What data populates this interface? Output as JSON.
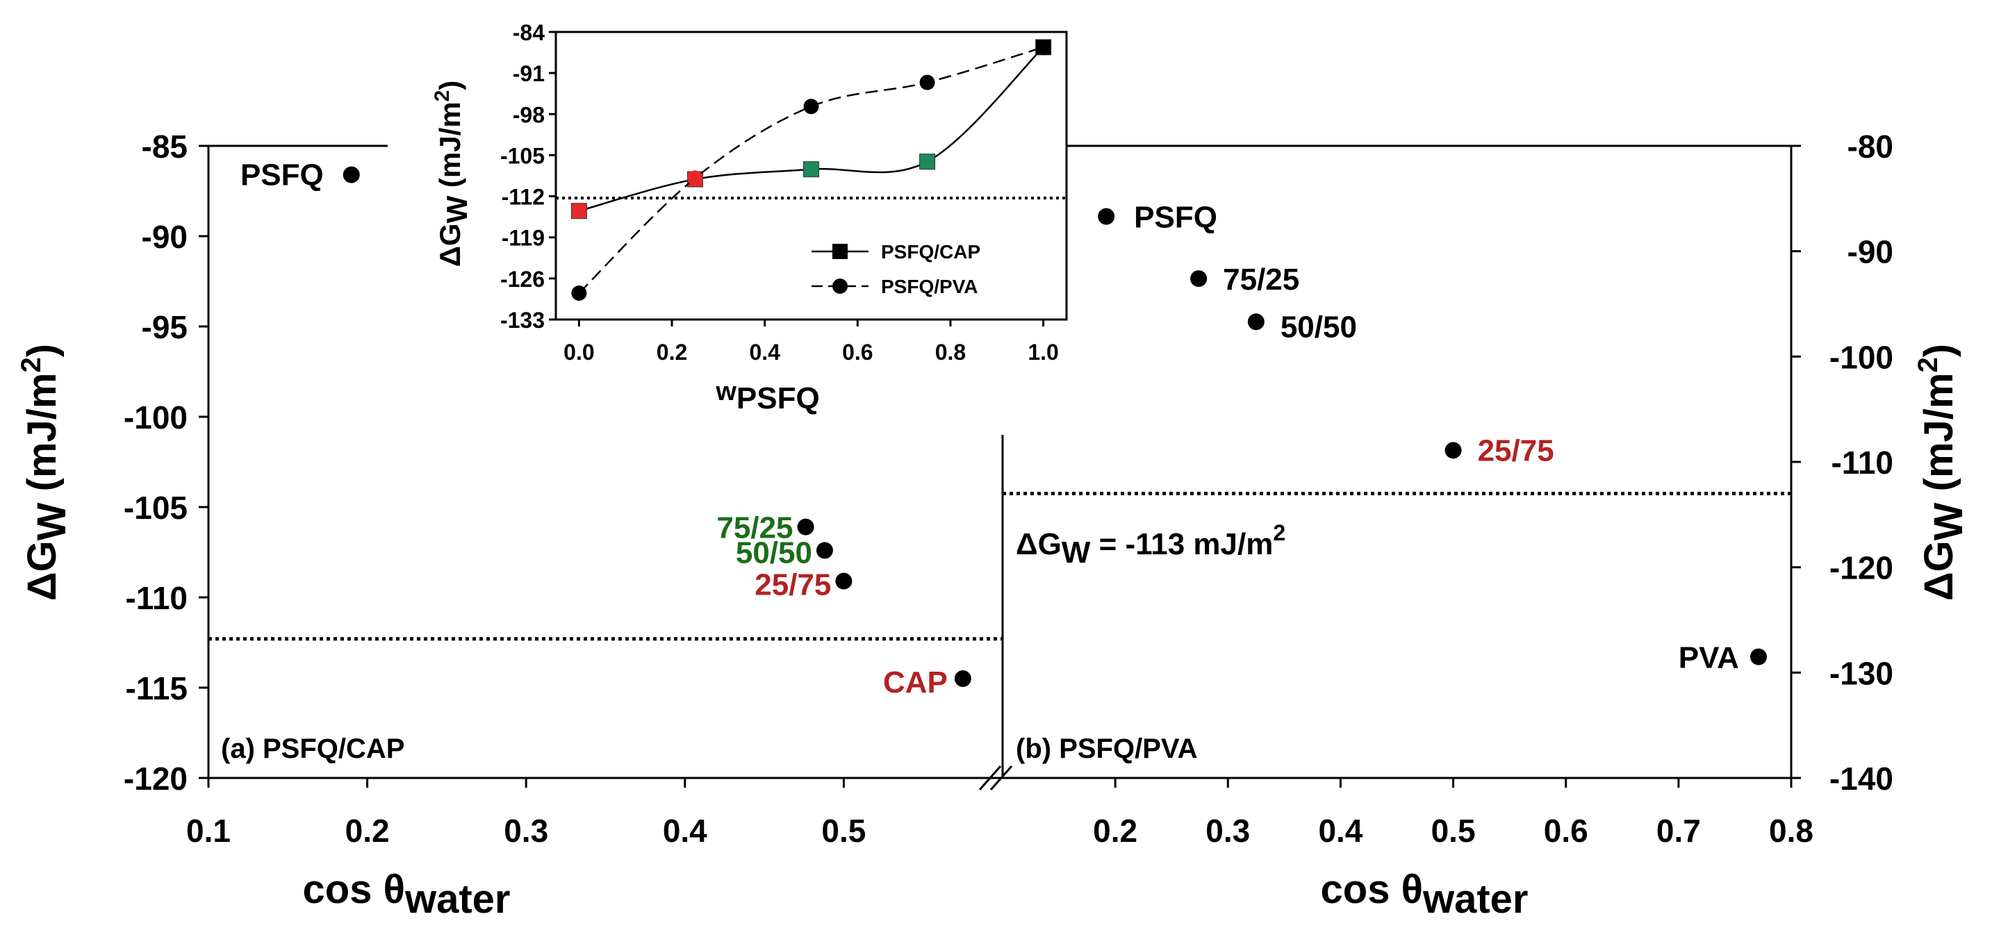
{
  "chart_data": [
    {
      "id": "panel_a",
      "type": "scatter",
      "panel_label": "(a) PSFQ/CAP",
      "xlabel_main": "cos θ",
      "xlabel_sub": "water",
      "ylabel_main": "ΔG",
      "ylabel_sub": "W",
      "ylabel_units": " (mJ/m",
      "ylabel_sup": "2",
      "ylabel_close": ")",
      "xlim": [
        0.1,
        0.6
      ],
      "ylim": [
        -120,
        -85
      ],
      "x_ticks": [
        0.1,
        0.2,
        0.3,
        0.4,
        0.5
      ],
      "x_tick_labels": [
        "0.1",
        "0.2",
        "0.3",
        "0.4",
        "0.5"
      ],
      "y_ticks": [
        -85,
        -90,
        -95,
        -100,
        -105,
        -110,
        -115,
        -120
      ],
      "y_tick_labels": [
        "-85",
        "-90",
        "-95",
        "-100",
        "-105",
        "-110",
        "-115",
        "-120"
      ],
      "reference_y": -112.3,
      "points": [
        {
          "x": 0.19,
          "y": -86.6,
          "label": "PSFQ",
          "color": "#000000"
        },
        {
          "x": 0.476,
          "y": -106.1,
          "label": "75/25",
          "color": "#1a6e1a"
        },
        {
          "x": 0.488,
          "y": -107.4,
          "label": "50/50",
          "color": "#1a6e1a"
        },
        {
          "x": 0.5,
          "y": -109.1,
          "label": "25/75",
          "color": "#b22222"
        },
        {
          "x": 0.575,
          "y": -114.5,
          "label": "CAP",
          "color": "#b22222"
        }
      ]
    },
    {
      "id": "panel_b",
      "type": "scatter",
      "panel_label": "(b) PSFQ/PVA",
      "xlabel_main": "cos θ",
      "xlabel_sub": "water",
      "ylabel_main": "ΔG",
      "ylabel_sub": "W",
      "ylabel_units": " (mJ/m",
      "ylabel_sup": "2",
      "ylabel_close": ")",
      "xlim": [
        0.1,
        0.8
      ],
      "ylim": [
        -140,
        -80
      ],
      "x_ticks": [
        0.2,
        0.3,
        0.4,
        0.5,
        0.6,
        0.7,
        0.8
      ],
      "x_tick_labels": [
        "0.2",
        "0.3",
        "0.4",
        "0.5",
        "0.6",
        "0.7",
        "0.8"
      ],
      "y_ticks": [
        -80,
        -90,
        -100,
        -110,
        -120,
        -130,
        -140
      ],
      "y_tick_labels": [
        "-80",
        "-90",
        "-100",
        "-110",
        "-120",
        "-130",
        "-140"
      ],
      "reference_y": -113,
      "reference_label_main": "ΔG",
      "reference_label_sub": "W",
      "reference_label_rest": " = -113 mJ/m",
      "reference_label_sup": "2",
      "points": [
        {
          "x": 0.192,
          "y": -86.7,
          "label": "PSFQ",
          "color": "#000000"
        },
        {
          "x": 0.274,
          "y": -92.6,
          "label": "75/25",
          "color": "#000000"
        },
        {
          "x": 0.325,
          "y": -96.7,
          "label": "50/50",
          "color": "#000000"
        },
        {
          "x": 0.5,
          "y": -108.9,
          "label": "25/75",
          "color": "#b22222"
        },
        {
          "x": 0.771,
          "y": -128.5,
          "label": "PVA",
          "color": "#000000"
        }
      ]
    },
    {
      "id": "inset",
      "type": "line",
      "xlabel_main": "w",
      "xlabel_sub": "PSFQ",
      "ylabel_main": "ΔG",
      "ylabel_sub": "W",
      "ylabel_units": " (mJ/m",
      "ylabel_sup": "2",
      "ylabel_close": ")",
      "xlim": [
        -0.05,
        1.05
      ],
      "ylim": [
        -133,
        -84
      ],
      "x_ticks": [
        0.0,
        0.2,
        0.4,
        0.6,
        0.8,
        1.0
      ],
      "x_tick_labels": [
        "0.0",
        "0.2",
        "0.4",
        "0.6",
        "0.8",
        "1.0"
      ],
      "y_ticks": [
        -84,
        -91,
        -98,
        -105,
        -112,
        -119,
        -126,
        -133
      ],
      "y_tick_labels": [
        "-84",
        "-91",
        "-98",
        "-105",
        "-112",
        "-119",
        "-126",
        "-133"
      ],
      "reference_y": -112.3,
      "series": [
        {
          "name": "PSFQ/CAP",
          "style": "solid",
          "marker": "square",
          "x": [
            0.0,
            0.25,
            0.5,
            0.75,
            1.0
          ],
          "y": [
            -114.5,
            -109.1,
            -107.4,
            -106.1,
            -86.6
          ],
          "marker_colors": [
            "#e8272b",
            "#e8272b",
            "#1c8a5a",
            "#1c8a5a",
            "#000000"
          ]
        },
        {
          "name": "PSFQ/PVA",
          "style": "dashed",
          "marker": "circle",
          "x": [
            0.0,
            0.25,
            0.5,
            0.75,
            1.0
          ],
          "y": [
            -128.5,
            -108.9,
            -96.7,
            -92.6,
            -86.6
          ],
          "marker_colors": [
            "#000000",
            "#e8272b",
            "#000000",
            "#000000",
            "#000000"
          ]
        }
      ]
    }
  ]
}
